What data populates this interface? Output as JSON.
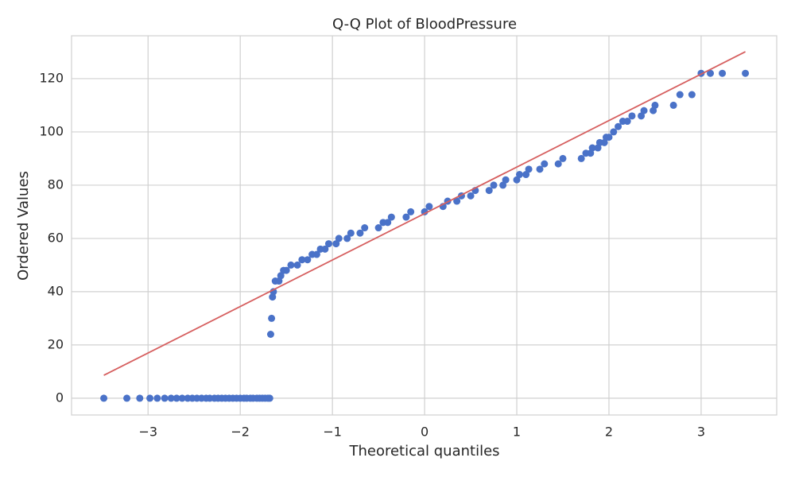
{
  "chart_data": {
    "type": "scatter",
    "title": "Q-Q Plot of BloodPressure",
    "x_label": "Theoretical quantiles",
    "y_label": "Ordered Values",
    "xlim": [
      -3.83,
      3.82
    ],
    "ylim": [
      -6.3,
      136.1
    ],
    "xticks": [
      {
        "value": -3,
        "label": "−3"
      },
      {
        "value": -2,
        "label": "−2"
      },
      {
        "value": -1,
        "label": "−1"
      },
      0,
      1,
      2,
      3
    ],
    "yticks": [
      0,
      20,
      40,
      60,
      80,
      100,
      120
    ],
    "grid": true,
    "points": {
      "color": "#4a72c8",
      "x": [
        -3.48,
        -3.23,
        -3.09,
        -2.98,
        -2.9,
        -2.82,
        -2.75,
        -2.69,
        -2.63,
        -2.57,
        -2.52,
        -2.47,
        -2.42,
        -2.37,
        -2.33,
        -2.28,
        -2.24,
        -2.2,
        -2.16,
        -2.12,
        -2.08,
        -2.04,
        -2.0,
        -1.96,
        -1.93,
        -1.89,
        -1.86,
        -1.82,
        -1.79,
        -1.76,
        -1.73,
        -1.7,
        -1.68,
        -1.67,
        -1.66,
        -1.65,
        -1.64,
        -1.62,
        -1.58,
        -1.56,
        -1.53,
        -1.5,
        -1.45,
        -1.38,
        -1.33,
        -1.27,
        -1.22,
        -1.17,
        -1.13,
        -1.08,
        -1.04,
        -0.96,
        -0.93,
        -0.84,
        -0.8,
        -0.7,
        -0.65,
        -0.5,
        -0.45,
        -0.4,
        -0.36,
        -0.2,
        -0.15,
        0.0,
        0.05,
        0.2,
        0.25,
        0.35,
        0.4,
        0.5,
        0.55,
        0.7,
        0.75,
        0.85,
        0.88,
        1.0,
        1.03,
        1.1,
        1.13,
        1.25,
        1.3,
        1.45,
        1.5,
        1.7,
        1.75,
        1.8,
        1.82,
        1.88,
        1.9,
        1.95,
        1.97,
        2.0,
        2.05,
        2.1,
        2.15,
        2.2,
        2.25,
        2.35,
        2.38,
        2.48,
        2.5,
        2.7,
        2.77,
        2.9,
        3.0,
        3.1,
        3.23,
        3.48
      ],
      "y": [
        0,
        0,
        0,
        0,
        0,
        0,
        0,
        0,
        0,
        0,
        0,
        0,
        0,
        0,
        0,
        0,
        0,
        0,
        0,
        0,
        0,
        0,
        0,
        0,
        0,
        0,
        0,
        0,
        0,
        0,
        0,
        0,
        0,
        24,
        30,
        38,
        40,
        44,
        44,
        46,
        48,
        48,
        50,
        50,
        52,
        52,
        54,
        54,
        56,
        56,
        58,
        58,
        60,
        60,
        62,
        62,
        64,
        64,
        66,
        66,
        68,
        68,
        70,
        70,
        72,
        72,
        74,
        74,
        76,
        76,
        78,
        78,
        80,
        80,
        82,
        82,
        84,
        84,
        86,
        86,
        88,
        88,
        90,
        90,
        92,
        92,
        94,
        94,
        96,
        96,
        98,
        98,
        100,
        102,
        104,
        104,
        106,
        106,
        108,
        108,
        110,
        110,
        114,
        114,
        122,
        122,
        122,
        122
      ]
    },
    "fit_line": {
      "color": "#d65f5f",
      "x": [
        -3.48,
        3.48
      ],
      "y": [
        8.6,
        130.1
      ]
    }
  }
}
